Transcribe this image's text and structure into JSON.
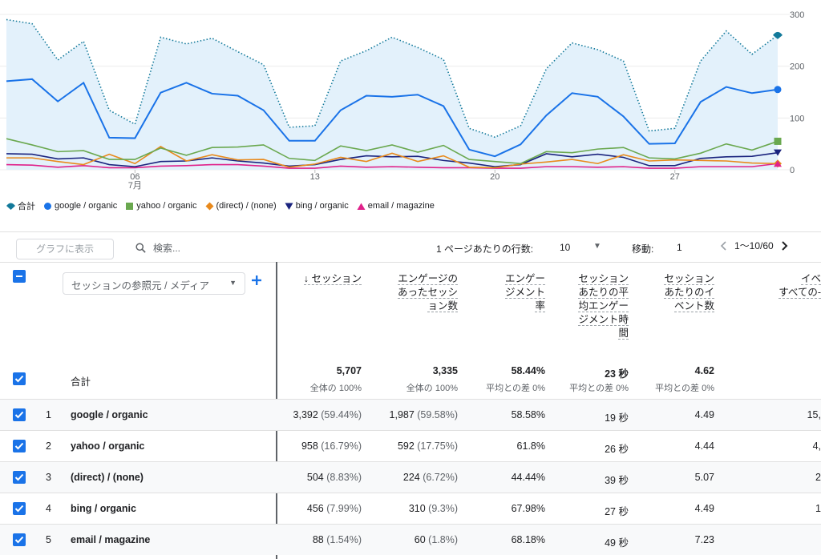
{
  "chart_data": {
    "type": "line",
    "x_labels": [
      {
        "day": 6,
        "text": "06",
        "month": "7月"
      },
      {
        "day": 13,
        "text": "13"
      },
      {
        "day": 20,
        "text": "20"
      },
      {
        "day": 27,
        "text": "27"
      }
    ],
    "y_ticks": [
      0,
      100,
      200,
      300
    ],
    "ylim": [
      0,
      300
    ],
    "x_start_day": 1,
    "x_end_day": 31,
    "series": [
      {
        "name": "合計",
        "color": "#12799a",
        "style": "dotted-area",
        "marker": "pin",
        "values": [
          290,
          282,
          212,
          248,
          115,
          88,
          256,
          243,
          254,
          228,
          203,
          82,
          85,
          210,
          230,
          256,
          236,
          213,
          80,
          63,
          85,
          195,
          245,
          232,
          210,
          75,
          80,
          210,
          268,
          223,
          260
        ]
      },
      {
        "name": "google / organic",
        "color": "#1a73e8",
        "marker": "circle",
        "values": [
          171,
          175,
          132,
          168,
          62,
          61,
          149,
          168,
          147,
          143,
          115,
          56,
          56,
          115,
          143,
          141,
          145,
          123,
          39,
          26,
          49,
          105,
          148,
          141,
          103,
          50,
          51,
          131,
          160,
          148,
          155
        ]
      },
      {
        "name": "yahoo / organic",
        "color": "#6aa84f",
        "marker": "square",
        "values": [
          60,
          48,
          35,
          37,
          20,
          20,
          42,
          28,
          43,
          44,
          48,
          22,
          18,
          46,
          37,
          48,
          34,
          47,
          20,
          16,
          12,
          35,
          33,
          40,
          43,
          23,
          21,
          32,
          50,
          38,
          55
        ]
      },
      {
        "name": "(direct) / (none)",
        "color": "#e8891c",
        "marker": "diamond",
        "values": [
          23,
          23,
          16,
          10,
          30,
          12,
          45,
          17,
          29,
          19,
          20,
          5,
          11,
          24,
          16,
          32,
          16,
          27,
          5,
          4,
          11,
          15,
          20,
          12,
          29,
          17,
          19,
          18,
          17,
          13,
          12
        ]
      },
      {
        "name": "bing / organic",
        "color": "#1a237e",
        "marker": "triangle-down",
        "values": [
          31,
          30,
          21,
          23,
          10,
          6,
          16,
          17,
          23,
          17,
          13,
          7,
          10,
          20,
          27,
          25,
          26,
          18,
          13,
          6,
          10,
          31,
          25,
          30,
          24,
          8,
          8,
          22,
          25,
          26,
          33
        ]
      },
      {
        "name": "email / magazine",
        "color": "#e0218a",
        "marker": "triangle-up",
        "values": [
          10,
          9,
          5,
          8,
          4,
          4,
          7,
          8,
          10,
          10,
          7,
          3,
          3,
          7,
          5,
          6,
          5,
          4,
          4,
          3,
          3,
          6,
          6,
          5,
          6,
          3,
          3,
          6,
          6,
          6,
          12
        ]
      }
    ]
  },
  "toolbar": {
    "graph_button": "グラフに表示",
    "search_placeholder": "検索...",
    "rows_per_page_label": "1 ページあたりの行数:",
    "rows_per_page_value": "10",
    "goto_label": "移動:",
    "goto_value": "1",
    "page_range": "1〜10/60"
  },
  "table": {
    "dimension_label": "セッションの参照元 / メディア",
    "headers": [
      {
        "lines": [
          "↓ セッション"
        ]
      },
      {
        "lines": [
          "エンゲージの",
          "あったセッシ",
          "ョン数"
        ]
      },
      {
        "lines": [
          "エンゲー",
          "ジメント",
          "率"
        ]
      },
      {
        "lines": [
          "セッション",
          "あたりの平",
          "均エンゲー",
          "ジメント時",
          "間"
        ]
      },
      {
        "lines": [
          "セッション",
          "あたりのイ",
          "ベント数"
        ]
      },
      {
        "lines": [
          "イベ",
          "すべての-"
        ]
      }
    ],
    "totals": {
      "label": "合計",
      "values": [
        "5,707",
        "3,335",
        "58.44%",
        "23 秒",
        "4.62"
      ],
      "subs": [
        "全体の 100%",
        "全体の 100%",
        "平均との差 0%",
        "平均との差 0%",
        "平均との差 0%"
      ]
    },
    "rows": [
      {
        "num": "1",
        "name": "google / organic",
        "sessions": "3,392",
        "sessions_pct": "(59.44%)",
        "engaged": "1,987",
        "engaged_pct": "(59.58%)",
        "rate": "58.58%",
        "time": "19 秒",
        "events": "4.49",
        "extra": "15,"
      },
      {
        "num": "2",
        "name": "yahoo / organic",
        "sessions": "958",
        "sessions_pct": "(16.79%)",
        "engaged": "592",
        "engaged_pct": "(17.75%)",
        "rate": "61.8%",
        "time": "26 秒",
        "events": "4.44",
        "extra": "4,"
      },
      {
        "num": "3",
        "name": "(direct) / (none)",
        "sessions": "504",
        "sessions_pct": "(8.83%)",
        "engaged": "224",
        "engaged_pct": "(6.72%)",
        "rate": "44.44%",
        "time": "39 秒",
        "events": "5.07",
        "extra": "2"
      },
      {
        "num": "4",
        "name": "bing / organic",
        "sessions": "456",
        "sessions_pct": "(7.99%)",
        "engaged": "310",
        "engaged_pct": "(9.3%)",
        "rate": "67.98%",
        "time": "27 秒",
        "events": "4.49",
        "extra": "1"
      },
      {
        "num": "5",
        "name": "email / magazine",
        "sessions": "88",
        "sessions_pct": "(1.54%)",
        "engaged": "60",
        "engaged_pct": "(1.8%)",
        "rate": "68.18%",
        "time": "49 秒",
        "events": "7.23",
        "extra": ""
      }
    ]
  }
}
